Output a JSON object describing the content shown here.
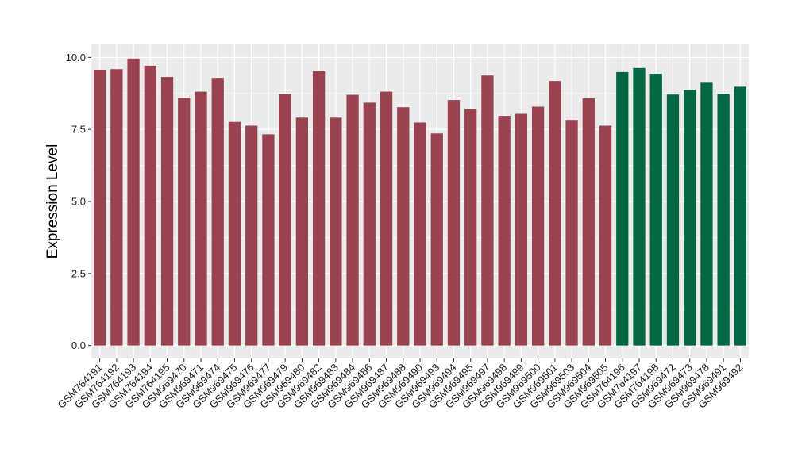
{
  "chart_data": {
    "type": "bar",
    "title": "",
    "xlabel": "",
    "ylabel": "Expression Level",
    "ylim": [
      -0.45,
      10.45
    ],
    "yticks": [
      0.0,
      2.5,
      5.0,
      7.5,
      10.0
    ],
    "ytick_labels": [
      "0.0",
      "2.5",
      "5.0",
      "7.5",
      "10.0"
    ],
    "grid": true,
    "legend": "none",
    "colors": {
      "group_a": "#9a4350",
      "group_b": "#026841",
      "panel": "#ebebeb",
      "gridline": "#ffffff"
    },
    "categories": [
      "GSM764191",
      "GSM764192",
      "GSM764193",
      "GSM764194",
      "GSM764195",
      "GSM969470",
      "GSM969471",
      "GSM969474",
      "GSM969475",
      "GSM969476",
      "GSM969477",
      "GSM969479",
      "GSM969480",
      "GSM969482",
      "GSM969483",
      "GSM969484",
      "GSM969486",
      "GSM969487",
      "GSM969488",
      "GSM969490",
      "GSM969493",
      "GSM969494",
      "GSM969495",
      "GSM969497",
      "GSM969498",
      "GSM969499",
      "GSM969500",
      "GSM969501",
      "GSM969503",
      "GSM969504",
      "GSM969505",
      "GSM764196",
      "GSM764197",
      "GSM764198",
      "GSM969472",
      "GSM969473",
      "GSM969478",
      "GSM969491",
      "GSM969492"
    ],
    "values": [
      9.57,
      9.59,
      9.96,
      9.71,
      9.32,
      8.6,
      8.81,
      9.29,
      7.76,
      7.63,
      7.33,
      8.73,
      7.91,
      9.52,
      7.91,
      8.7,
      8.43,
      8.81,
      8.27,
      7.74,
      7.36,
      8.52,
      8.21,
      9.37,
      7.97,
      8.04,
      8.29,
      9.18,
      7.83,
      8.58,
      7.63,
      9.49,
      9.63,
      9.43,
      8.71,
      8.87,
      9.12,
      8.73,
      8.98
    ],
    "groups": [
      "a",
      "a",
      "a",
      "a",
      "a",
      "a",
      "a",
      "a",
      "a",
      "a",
      "a",
      "a",
      "a",
      "a",
      "a",
      "a",
      "a",
      "a",
      "a",
      "a",
      "a",
      "a",
      "a",
      "a",
      "a",
      "a",
      "a",
      "a",
      "a",
      "a",
      "a",
      "b",
      "b",
      "b",
      "b",
      "b",
      "b",
      "b",
      "b"
    ]
  }
}
